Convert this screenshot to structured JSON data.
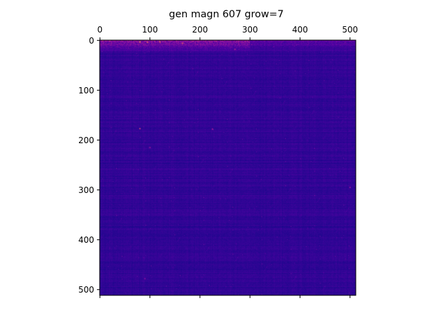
{
  "chart_data": {
    "type": "heatmap",
    "title": "gen magn 607 grow=7",
    "xlabel": "",
    "ylabel": "",
    "x_axis_position": "top",
    "x_ticks": [
      0,
      100,
      200,
      300,
      400,
      500
    ],
    "y_ticks": [
      0,
      100,
      200,
      300,
      400,
      500
    ],
    "x_tick_labels": [
      "0",
      "100",
      "200",
      "300",
      "400",
      "500"
    ],
    "y_tick_labels": [
      "0",
      "100",
      "200",
      "300",
      "400",
      "500"
    ],
    "xlim": [
      -0.5,
      511.5
    ],
    "ylim": [
      511.5,
      -0.5
    ],
    "shape": [
      512,
      512
    ],
    "colormap": "plasma",
    "grid": false,
    "legend": "none",
    "colors": {
      "low": "#0d0887",
      "mid": "#5a0aa3",
      "high": "#b42b9a",
      "peak": "#f0f921"
    },
    "pattern": {
      "background_level": 0.12,
      "top_rows_level": 0.35,
      "top_rows_extent": 25,
      "hot_spots": [
        {
          "x": 80,
          "y": 3,
          "level": 0.8
        },
        {
          "x": 95,
          "y": 4,
          "level": 0.7
        },
        {
          "x": 120,
          "y": 3,
          "level": 0.75
        },
        {
          "x": 165,
          "y": 6,
          "level": 0.7
        },
        {
          "x": 270,
          "y": 18,
          "level": 0.55
        },
        {
          "x": 80,
          "y": 177,
          "level": 0.6
        },
        {
          "x": 225,
          "y": 178,
          "level": 0.5
        },
        {
          "x": 100,
          "y": 215,
          "level": 0.45
        },
        {
          "x": 500,
          "y": 295,
          "level": 0.45
        },
        {
          "x": 90,
          "y": 478,
          "level": 0.4
        }
      ]
    }
  }
}
